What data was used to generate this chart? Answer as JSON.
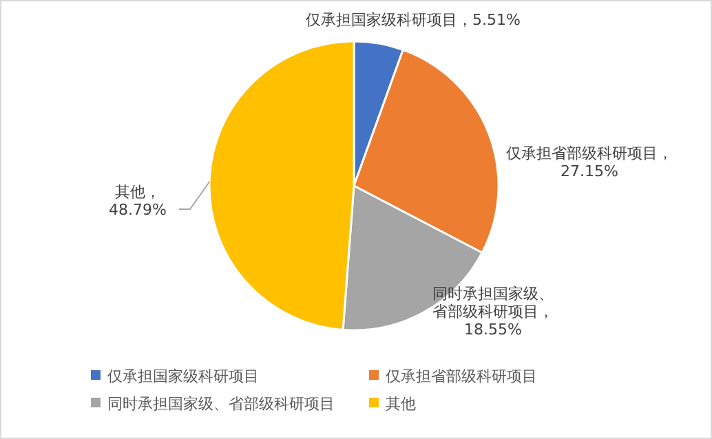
{
  "chart_data": {
    "type": "pie",
    "categories": [
      "仅承担国家级科研项目",
      "仅承担省部级科研项目",
      "同时承担国家级、省部级科研项目",
      "其他"
    ],
    "values": [
      5.51,
      27.15,
      18.55,
      48.79
    ],
    "colors": [
      "#4472c4",
      "#ed7d31",
      "#a5a5a5",
      "#ffc000"
    ],
    "value_labels": [
      "仅承担国家级科研项目，5.51%",
      "仅承担省部级科研项目，27.15%",
      "同时承担国家级、省部级科研项目，18.55%",
      "其他，48.79%"
    ],
    "legend": "bottom"
  }
}
